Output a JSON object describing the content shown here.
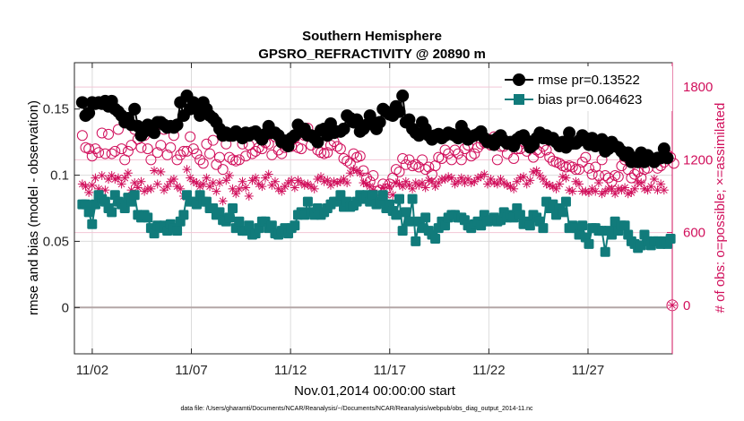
{
  "chart_data": {
    "type": "line",
    "title": "Southern Hemisphere",
    "subtitle": "GPSRO_REFRACTIVITY @ 20890 m",
    "xlabel": "Nov.01,2014 00:00:00 start",
    "ylabel": "rmse and bias (model - observation)",
    "ylabel_right": "# of obs: o=possible; ×=assimilated",
    "footnote": "data file: /Users/gharamti/Documents/NCAR/Reanalysis/~/Documents/NCAR/Reanalysis/webpub/obs_diag_output_2014-11.nc",
    "xlim": [
      0.6,
      30.75
    ],
    "ylim": [
      -0.035,
      0.185
    ],
    "ylim_right": [
      -400,
      2000
    ],
    "x_ticks": [
      1.5,
      6.5,
      11.5,
      16.5,
      21.5,
      26.5
    ],
    "x_tick_labels": [
      "11/02",
      "11/07",
      "11/12",
      "11/17",
      "11/22",
      "11/27"
    ],
    "y_ticks": [
      0,
      0.05,
      0.1,
      0.15
    ],
    "y_tick_labels": [
      "0",
      "0.05",
      "0.1",
      "0.15"
    ],
    "y_right_ticks": [
      0,
      600,
      1200,
      1800
    ],
    "y_right_tick_labels": [
      "0",
      "600",
      "1200",
      "1800"
    ],
    "zero_line": 0,
    "grid": true,
    "legend_position": "top-right",
    "colors": {
      "rmse": "#000000",
      "bias": "#117b7b",
      "counts": "#d1105c",
      "grid": "#dcdcdc",
      "axis": "#262626"
    },
    "series": [
      {
        "name": "rmse pr=0.13522",
        "style": "black line with filled circles",
        "values": [
          0.155,
          0.145,
          0.147,
          0.155,
          0.154,
          0.155,
          0.154,
          0.156,
          0.152,
          0.156,
          0.15,
          0.148,
          0.145,
          0.14,
          0.143,
          0.138,
          0.15,
          0.137,
          0.13,
          0.133,
          0.138,
          0.137,
          0.132,
          0.14,
          0.14,
          0.138,
          0.136,
          0.137,
          0.136,
          0.138,
          0.155,
          0.145,
          0.16,
          0.15,
          0.155,
          0.15,
          0.145,
          0.155,
          0.15,
          0.145,
          0.143,
          0.14,
          0.135,
          0.13,
          0.132,
          0.13,
          0.13,
          0.133,
          0.131,
          0.128,
          0.132,
          0.13,
          0.132,
          0.133,
          0.13,
          0.127,
          0.131,
          0.137,
          0.132,
          0.132,
          0.13,
          0.125,
          0.126,
          0.122,
          0.128,
          0.13,
          0.138,
          0.133,
          0.135,
          0.13,
          0.13,
          0.128,
          0.125,
          0.134,
          0.135,
          0.13,
          0.139,
          0.132,
          0.133,
          0.133,
          0.135,
          0.145,
          0.143,
          0.14,
          0.142,
          0.133,
          0.135,
          0.138,
          0.145,
          0.14,
          0.135,
          0.14,
          0.15,
          0.148,
          0.146,
          0.145,
          0.152,
          0.148,
          0.16,
          0.14,
          0.142,
          0.135,
          0.132,
          0.13,
          0.14,
          0.135,
          0.13,
          0.127,
          0.13,
          0.131,
          0.128,
          0.13,
          0.132,
          0.131,
          0.13,
          0.128,
          0.137,
          0.132,
          0.127,
          0.129,
          0.13,
          0.131,
          0.133,
          0.128,
          0.125,
          0.126,
          0.123,
          0.128,
          0.13,
          0.126,
          0.124,
          0.125,
          0.122,
          0.127,
          0.129,
          0.13,
          0.126,
          0.121,
          0.123,
          0.128,
          0.132,
          0.128,
          0.13,
          0.127,
          0.128,
          0.125,
          0.122,
          0.125,
          0.121,
          0.132,
          0.124,
          0.124,
          0.126,
          0.13,
          0.128,
          0.123,
          0.128,
          0.122,
          0.125,
          0.127,
          0.118,
          0.12,
          0.125,
          0.122,
          0.121,
          0.118,
          0.115,
          0.117,
          0.11,
          0.113,
          0.11,
          0.117,
          0.11,
          0.115,
          0.112,
          0.11,
          0.113,
          0.113,
          0.12,
          0.113
        ]
      },
      {
        "name": "bias pr=0.064623",
        "style": "teal line with filled squares",
        "values": [
          0.078,
          0.078,
          0.072,
          0.063,
          0.078,
          0.085,
          0.082,
          0.08,
          0.075,
          0.072,
          0.085,
          0.08,
          0.078,
          0.075,
          0.083,
          0.08,
          0.085,
          0.07,
          0.068,
          0.07,
          0.068,
          0.06,
          0.056,
          0.062,
          0.06,
          0.062,
          0.058,
          0.063,
          0.06,
          0.058,
          0.065,
          0.07,
          0.085,
          0.08,
          0.08,
          0.078,
          0.085,
          0.08,
          0.08,
          0.075,
          0.075,
          0.07,
          0.072,
          0.066,
          0.065,
          0.068,
          0.075,
          0.06,
          0.065,
          0.058,
          0.058,
          0.062,
          0.055,
          0.056,
          0.06,
          0.065,
          0.065,
          0.06,
          0.062,
          0.056,
          0.055,
          0.058,
          0.06,
          0.056,
          0.06,
          0.062,
          0.07,
          0.072,
          0.07,
          0.08,
          0.072,
          0.07,
          0.075,
          0.07,
          0.072,
          0.075,
          0.078,
          0.08,
          0.08,
          0.085,
          0.076,
          0.08,
          0.076,
          0.077,
          0.08,
          0.085,
          0.082,
          0.085,
          0.08,
          0.085,
          0.078,
          0.08,
          0.085,
          0.075,
          0.078,
          0.073,
          0.07,
          0.082,
          0.058,
          0.072,
          0.065,
          0.082,
          0.05,
          0.065,
          0.06,
          0.068,
          0.058,
          0.055,
          0.052,
          0.06,
          0.065,
          0.062,
          0.068,
          0.07,
          0.07,
          0.068,
          0.068,
          0.066,
          0.062,
          0.06,
          0.063,
          0.065,
          0.062,
          0.07,
          0.065,
          0.066,
          0.068,
          0.065,
          0.066,
          0.072,
          0.068,
          0.07,
          0.068,
          0.075,
          0.07,
          0.063,
          0.065,
          0.062,
          0.07,
          0.068,
          0.065,
          0.06,
          0.08,
          0.075,
          0.078,
          0.07,
          0.075,
          0.072,
          0.08,
          0.06,
          0.062,
          0.06,
          0.055,
          0.062,
          0.053,
          0.048,
          0.06,
          0.06,
          0.058,
          0.058,
          0.042,
          0.058,
          0.055,
          0.065,
          0.058,
          0.062,
          0.062,
          0.055,
          0.05,
          0.048,
          0.045,
          0.047,
          0.055,
          0.05,
          0.047,
          0.05,
          0.05,
          0.048,
          0.05,
          0.048,
          0.052
        ]
      },
      {
        "name": "possible",
        "axis": "right",
        "style": "magenta open circles",
        "values": [
          1400,
          1300,
          1290,
          1230,
          1290,
          1260,
          1420,
          1250,
          1410,
          1250,
          1270,
          1450,
          1290,
          1200,
          1270,
          1320,
          1450,
          1370,
          1300,
          1400,
          1290,
          1200,
          1440,
          1260,
          1320,
          1450,
          1240,
          1300,
          1400,
          1200,
          1240,
          1270,
          1270,
          1390,
          1290,
          1250,
          1200,
          1170,
          1330,
          1250,
          1360,
          1160,
          1220,
          1120,
          1330,
          1220,
          1200,
          1190,
          1200,
          1330,
          1230,
          1320,
          1250,
          1270,
          1300,
          1290,
          1340,
          1330,
          1240,
          1390,
          1280,
          1250,
          1300,
          1320,
          1310,
          1380,
          1300,
          1290,
          1400,
          1460,
          1320,
          1400,
          1280,
          1260,
          1250,
          1260,
          1320,
          1350,
          1310,
          1290,
          1210,
          1190,
          1170,
          1250,
          1220,
          1230,
          1110,
          1050,
          1020,
          1070,
          940,
          950,
          1000,
          960,
          1000,
          1050,
          1120,
          1100,
          1210,
          1160,
          1200,
          1150,
          1160,
          1140,
          1200,
          1120,
          1140,
          1080,
          1150,
          1220,
          1210,
          1280,
          1250,
          1200,
          1280,
          1250,
          1200,
          1290,
          1320,
          1230,
          1250,
          1300,
          1330,
          1340,
          1370,
          1320,
          1390,
          1200,
          1310,
          1310,
          1250,
          1340,
          1210,
          1290,
          1290,
          1350,
          1270,
          1340,
          1220,
          1280,
          1260,
          1310,
          1280,
          1220,
          1190,
          1180,
          1170,
          1150,
          1140,
          1150,
          1140,
          1120,
          1120,
          1180,
          1220,
          1130,
          1080,
          1140,
          1070,
          1200,
          1070,
          1050,
          1020,
          1070,
          1060,
          1150,
          1200,
          1120,
          1050,
          1080,
          1100,
          1050,
          1120,
          1130,
          1200,
          1180,
          1130,
          1150,
          1180,
          1240,
          1220,
          1170
        ]
      },
      {
        "name": "assimilated",
        "axis": "right",
        "style": "magenta asterisks",
        "values": [
          1000,
          980,
          930,
          990,
          1050,
          960,
          1070,
          950,
          1040,
          1070,
          1040,
          1050,
          1000,
          1050,
          1090,
          950,
          1010,
          970,
          1020,
          940,
          960,
          960,
          1110,
          1000,
          1100,
          950,
          980,
          1020,
          1040,
          980,
          960,
          900,
          1120,
          1050,
          1020,
          1010,
          980,
          1000,
          1050,
          980,
          1010,
          940,
          1010,
          860,
          1030,
          1070,
          960,
          920,
          960,
          1020,
          970,
          900,
          1030,
          1050,
          1000,
          980,
          1050,
          1080,
          990,
          1020,
          960,
          940,
          980,
          1010,
          1030,
          970,
          1030,
          1010,
          990,
          1000,
          980,
          960,
          1040,
          1060,
          1020,
          1030,
          990,
          1020,
          1010,
          1020,
          1040,
          1010,
          1090,
          1120,
          1110,
          1090,
          1010,
          1000,
          980,
          950,
          870,
          860,
          970,
          910,
          980,
          910,
          1010,
          1000,
          980,
          1020,
          990,
          960,
          1010,
          990,
          1010,
          970,
          1030,
          1020,
          980,
          1010,
          1040,
          1040,
          1060,
          1050,
          1000,
          1020,
          1050,
          1010,
          1040,
          1010,
          1020,
          1050,
          1060,
          1080,
          1000,
          1040,
          1010,
          1000,
          1040,
          1010,
          990,
          980,
          960,
          1020,
          1050,
          1060,
          1000,
          1030,
          1100,
          1110,
          1070,
          1040,
          1000,
          990,
          980,
          960,
          1000,
          1060,
          1050,
          950,
          940,
          1020,
          1000,
          940,
          940,
          930,
          960,
          940,
          1010,
          920,
          940,
          960,
          960,
          920,
          960,
          950,
          970,
          920,
          930,
          960,
          1010,
          1010,
          960,
          950,
          980,
          1040,
          950,
          1000,
          950
        ]
      }
    ],
    "counts_at_zero": "0"
  }
}
